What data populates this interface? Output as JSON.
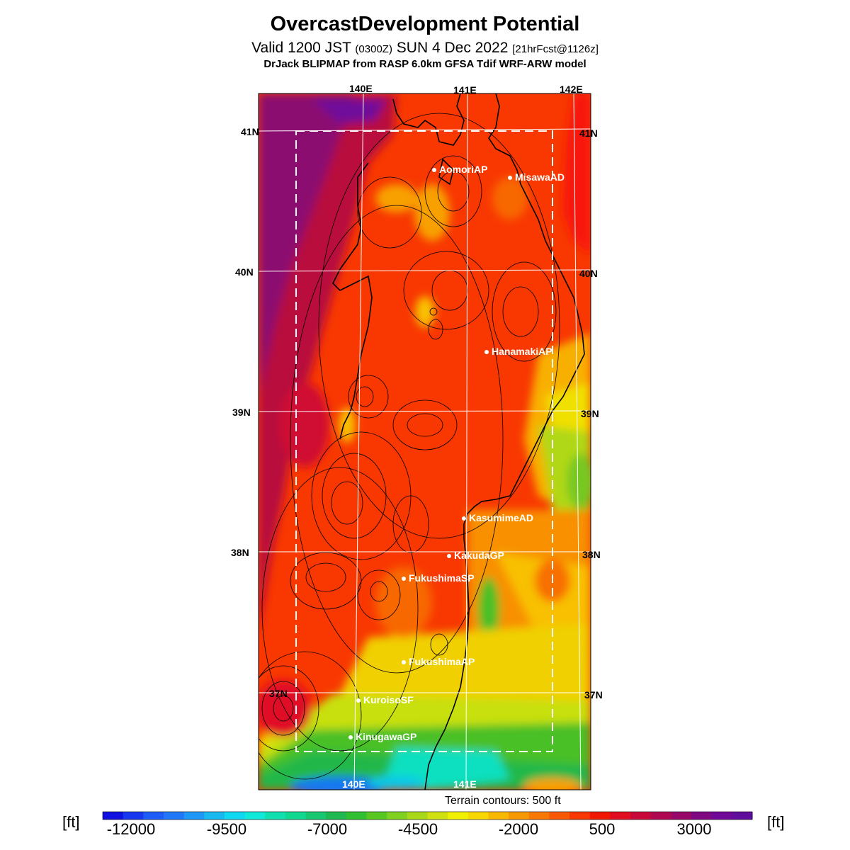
{
  "header": {
    "title": "OvercastDevelopment Potential",
    "valid_main": "Valid 1200 JST",
    "valid_zulu": "(0300Z)",
    "valid_date": "SUN 4 Dec 2022",
    "forecast": "[21hrFcst@1126z]",
    "model": "DrJack BLIPMAP from RASP 6.0km GFSA Tdif WRF-ARW model"
  },
  "axes": {
    "lon_top": [
      "140E",
      "141E",
      "142E"
    ],
    "lon_bottom": [
      "140E",
      "141E"
    ],
    "lat_left": [
      "41N",
      "40N",
      "39N",
      "38N",
      "37N"
    ],
    "lat_right": [
      "41N",
      "40N",
      "39N",
      "38N",
      "37N"
    ]
  },
  "stations": [
    {
      "name": "AomoriAP"
    },
    {
      "name": "MisawaAD"
    },
    {
      "name": "HanamakiAP"
    },
    {
      "name": "KasumimeAD"
    },
    {
      "name": "KakudaGP"
    },
    {
      "name": "FukushimaSP"
    },
    {
      "name": "FukushimaAP"
    },
    {
      "name": "KuroisoSF"
    },
    {
      "name": "KinugawaGP"
    }
  ],
  "terrain_note": "Terrain contours: 500 ft",
  "colorbar": {
    "unit_left": "[ft]",
    "unit_right": "[ft]",
    "labels": [
      "-12000",
      "-9500",
      "-7000",
      "-4500",
      "-2000",
      "500",
      "3000"
    ],
    "colors": [
      "#1010e0",
      "#1838f0",
      "#1e5cf8",
      "#2078f8",
      "#1e98f8",
      "#18b8f0",
      "#10d8f0",
      "#10e8d8",
      "#10e0b0",
      "#10d890",
      "#18c870",
      "#20b850",
      "#30c030",
      "#58c820",
      "#80d020",
      "#a8d818",
      "#d0e010",
      "#f0f000",
      "#f8d800",
      "#f8b800",
      "#f89800",
      "#f87800",
      "#f85800",
      "#f83800",
      "#f01800",
      "#e00c20",
      "#c80838",
      "#b00850",
      "#980868",
      "#800880",
      "#700898",
      "#600c9c"
    ]
  }
}
